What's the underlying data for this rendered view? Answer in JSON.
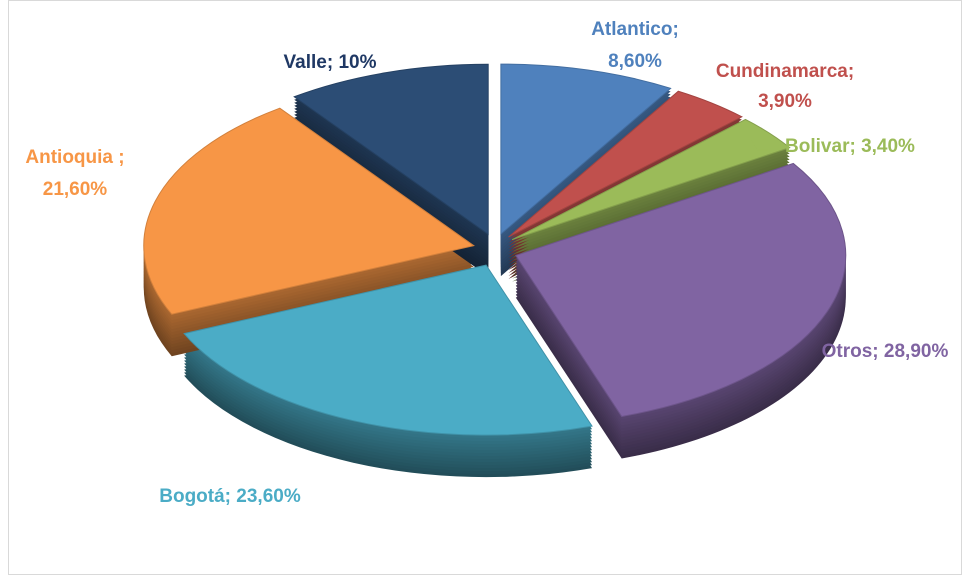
{
  "chart_data": {
    "type": "pie",
    "categories": [
      "Atlantico;",
      "Cundinamarca;",
      "Bolivar;",
      "Otros;",
      "Bogotá;",
      "Antioquia ;",
      "Valle;"
    ],
    "values": [
      8.6,
      3.9,
      3.4,
      28.9,
      23.6,
      21.6,
      10
    ],
    "value_labels": [
      "8,60%",
      "3,90%",
      "3,40%",
      "28,90%",
      "23,60%",
      "21,60%",
      "10%"
    ],
    "colors": [
      "#4f81bd",
      "#c0504d",
      "#9bbb59",
      "#8064a2",
      "#4bacc6",
      "#f79646",
      "#2c4d75"
    ],
    "label_colors": [
      "#4f81bd",
      "#c0504d",
      "#9bbb59",
      "#8064a2",
      "#4bacc6",
      "#f79646",
      "#1f3864"
    ]
  }
}
